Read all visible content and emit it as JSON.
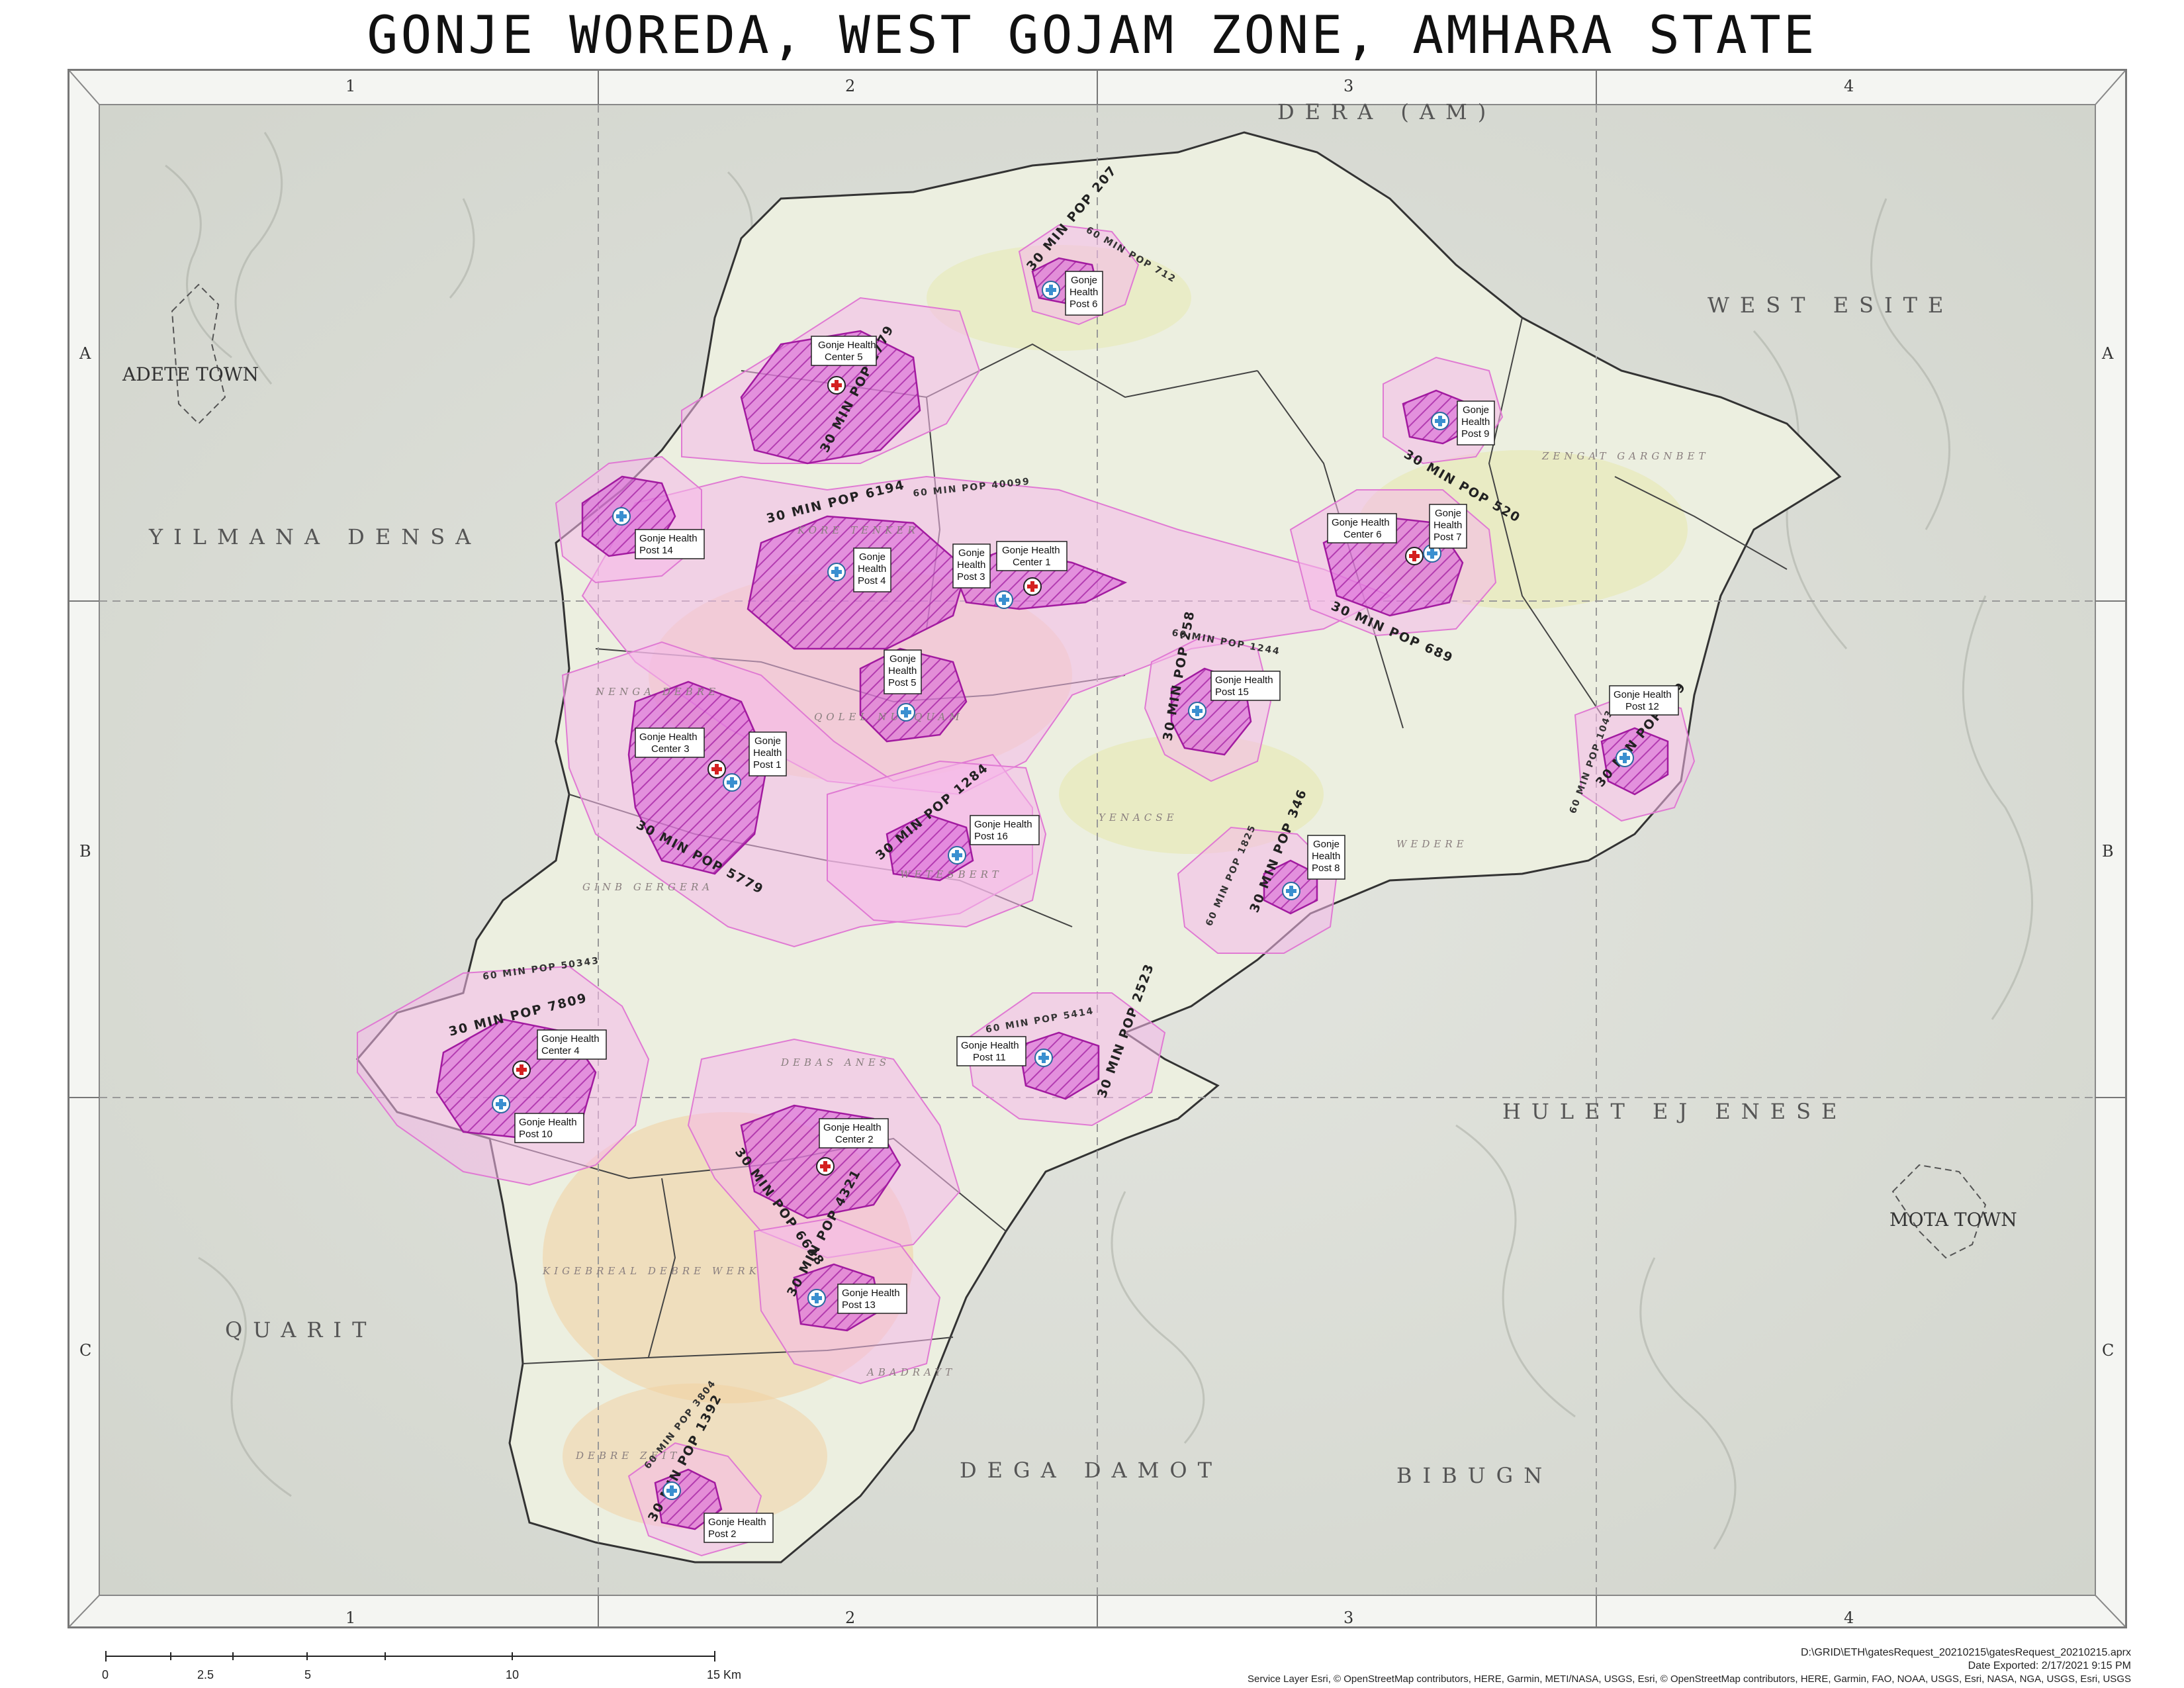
{
  "title": "GONJE WOREDA, WEST GOJAM ZONE, AMHARA STATE",
  "grid": {
    "columns": [
      "1",
      "2",
      "3",
      "4"
    ],
    "rows": [
      "A",
      "B",
      "C"
    ]
  },
  "places": {
    "dera": "DERA (AM)",
    "west_esite": "WEST ESITE",
    "yilmana_densa": "YILMANA DENSA",
    "hulet_ej_enese": "HULET EJ ENESE",
    "quarit": "QUARIT",
    "dega_damot": "DEGA DAMOT",
    "bibugn": "BIBUGN",
    "adete_town": "ADETE TOWN",
    "mota_town": "MOTA TOWN"
  },
  "kebeles": {
    "k1": "KORE TENKER",
    "k2": "QOLEL NUBQUAM",
    "k3": "YENACSE",
    "k4": "WEDERE",
    "k5": "GINB GERGERA",
    "k6": "NENGA DEBRE",
    "k7": "KIGEBREAL DEBRE WERK",
    "k8": "ABADRAYT",
    "k9": "DEBRE ZEIT",
    "k10": "WETESBERT",
    "k11": "DEBAS ANES",
    "k12": "ZENGAT GARGNBET"
  },
  "facilities": {
    "hc1": "Gonje Health Center 1",
    "hc2": "Gonje Health Center 2",
    "hc3": "Gonje Health Center 3",
    "hc4": "Gonje Health Center 4",
    "hc5": "Gonje Health Center 5",
    "hc6": "Gonje Health Center 6",
    "hp1": "Gonje Health Post 1",
    "hp2": "Gonje Health Post 2",
    "hp3": "Gonje Health Post 3",
    "hp4": "Gonje Health Post 4",
    "hp5": "Gonje Health Post 5",
    "hp6": "Gonje Health Post 6",
    "hp7": "Gonje Health Post 7",
    "hp8": "Gonje Health Post 8",
    "hp9": "Gonje Health Post 9",
    "hp10": "Gonje Health Post 10",
    "hp11": "Gonje Health Post 11",
    "hp12": "Gonje Health Post 12",
    "hp13": "Gonje Health Post 13",
    "hp14": "Gonje Health Post 14",
    "hp15": "Gonje Health Post 15",
    "hp16": "Gonje Health Post 16"
  },
  "population_labels": {
    "p30_hc5": "30 MIN POP 1779",
    "p30_hc4": "30 MIN POP 7809",
    "p60_hc4": "60 MIN POP 50343",
    "p30_hp4": "30 MIN POP 6194",
    "p60_hp4": "60 MIN POP 40099",
    "p30_hc3": "30 MIN POP 5779",
    "p30_hp16": "30 MIN POP 1284",
    "p30_hc2": "30 MIN POP 6638",
    "p30_hp13": "30 MIN POP 4321",
    "p30_hp2": "30 MIN POP 1392",
    "p60_hp2": "60 MIN POP 3804",
    "p30_hc6": "30 MIN POP 689",
    "p30_hp9": "30 MIN POP 520",
    "p30_hp15": "30 MIN POP 258",
    "p60_hp15": "60 MIN POP 1244",
    "p30_hp8": "30 MIN POP 346",
    "p60_hp8": "60 MIN POP 1825",
    "p30_hp12": "30 MIN POP 459",
    "p60_hp12": "60 MIN POP 1043",
    "p30_hp11": "30 MIN POP 2523",
    "p60_hp11": "60 MIN POP 5414",
    "p30_hp6": "30 MIN POP 207",
    "p60_hp6": "60 MIN POP 712"
  },
  "scale_bar": {
    "ticks": [
      "0",
      "2.5",
      "5",
      "10",
      "15 Km"
    ]
  },
  "footer": {
    "path": "D:\\GRID\\ETH\\gatesRequest_20210215\\gatesRequest_20210215.aprx",
    "exported": "Date Exported: 2/17/2021 9:15 PM",
    "credits": "Service Layer Esri, © OpenStreetMap contributors, HERE, Garmin, METI/NASA, USGS, Esri, © OpenStreetMap contributors, HERE, Garmin, FAO, NOAA, USGS, Esri, NASA, NGA, USGS, Esri, USGS"
  },
  "colors": {
    "catchment_30": "#cc33cc",
    "catchment_60": "#f2b6e6",
    "health_center": "#d42020",
    "health_post": "#3a8fd0",
    "woreda_fill": "#e9ecd8",
    "terrain": "#c9ccc4"
  }
}
